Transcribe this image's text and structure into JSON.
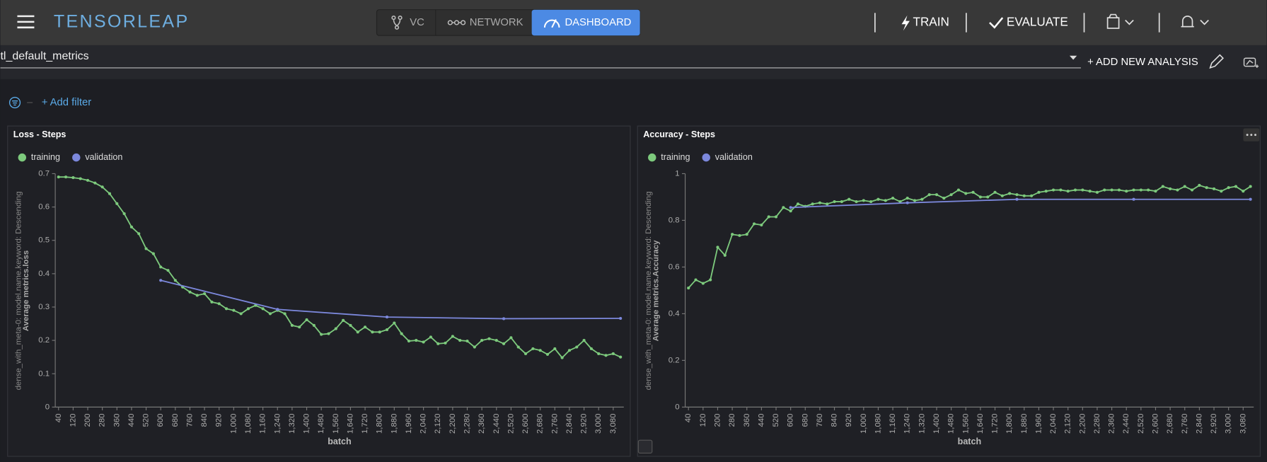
{
  "header": {
    "brand": "TENSORLEAP",
    "tabs": [
      "VC",
      "NETWORK",
      "DASHBOARD"
    ],
    "actions": [
      "TRAIN",
      "EVALUATE"
    ]
  },
  "dashboard": {
    "name": "tl_default_metrics",
    "add_analysis": "+ ADD NEW ANALYSIS",
    "add_filter": "+ Add filter"
  },
  "chart_data": [
    {
      "type": "line",
      "title": "Loss - Steps",
      "x_label": "batch",
      "y_label": "Average metrics.loss",
      "y_sublabel": "dense_with_meta-0: model.name.keyword: Descending",
      "xlim": [
        22,
        3138
      ],
      "ylim": [
        0,
        0.7
      ],
      "yticks": [
        0,
        0.1,
        0.2,
        0.3,
        0.4,
        0.5,
        0.6,
        0.7
      ],
      "xticks": [
        40,
        120,
        200,
        280,
        360,
        440,
        520,
        600,
        680,
        760,
        840,
        920,
        {
          "value": 1000,
          "label": "1,000"
        },
        {
          "value": 1080,
          "label": "1,080"
        },
        {
          "value": 1160,
          "label": "1,160"
        },
        {
          "value": 1240,
          "label": "1,240"
        },
        {
          "value": 1320,
          "label": "1,320"
        },
        {
          "value": 1400,
          "label": "1,400"
        },
        {
          "value": 1480,
          "label": "1,480"
        },
        {
          "value": 1560,
          "label": "1,560"
        },
        {
          "value": 1640,
          "label": "1,640"
        },
        {
          "value": 1720,
          "label": "1,720"
        },
        {
          "value": 1800,
          "label": "1,800"
        },
        {
          "value": 1880,
          "label": "1,880"
        },
        {
          "value": 1960,
          "label": "1,960"
        },
        {
          "value": 2040,
          "label": "2,040"
        },
        {
          "value": 2120,
          "label": "2,120"
        },
        {
          "value": 2200,
          "label": "2,200"
        },
        {
          "value": 2280,
          "label": "2,280"
        },
        {
          "value": 2360,
          "label": "2,360"
        },
        {
          "value": 2440,
          "label": "2,440"
        },
        {
          "value": 2520,
          "label": "2,520"
        },
        {
          "value": 2600,
          "label": "2,600"
        },
        {
          "value": 2680,
          "label": "2,680"
        },
        {
          "value": 2760,
          "label": "2,760"
        },
        {
          "value": 2840,
          "label": "2,840"
        },
        {
          "value": 2920,
          "label": "2,920"
        },
        {
          "value": 3000,
          "label": "3,000"
        },
        {
          "value": 3080,
          "label": "3,080"
        }
      ],
      "series": [
        {
          "name": "training",
          "color": "#7dca7d",
          "x": [
            40,
            80,
            120,
            160,
            200,
            240,
            280,
            320,
            360,
            400,
            440,
            480,
            520,
            560,
            600,
            640,
            680,
            720,
            760,
            800,
            840,
            880,
            920,
            960,
            1000,
            1040,
            1080,
            1120,
            1160,
            1200,
            1240,
            1280,
            1320,
            1360,
            1400,
            1440,
            1480,
            1520,
            1560,
            1600,
            1640,
            1680,
            1720,
            1760,
            1800,
            1840,
            1880,
            1920,
            1960,
            2000,
            2040,
            2080,
            2120,
            2160,
            2200,
            2240,
            2280,
            2320,
            2360,
            2400,
            2440,
            2480,
            2520,
            2560,
            2600,
            2640,
            2680,
            2720,
            2760,
            2800,
            2840,
            2880,
            2920,
            2960,
            3000,
            3040,
            3080,
            3120
          ],
          "values": [
            0.69,
            0.69,
            0.688,
            0.685,
            0.68,
            0.672,
            0.66,
            0.64,
            0.61,
            0.58,
            0.54,
            0.52,
            0.475,
            0.46,
            0.42,
            0.41,
            0.38,
            0.36,
            0.345,
            0.335,
            0.34,
            0.315,
            0.31,
            0.295,
            0.29,
            0.28,
            0.295,
            0.305,
            0.295,
            0.28,
            0.29,
            0.28,
            0.245,
            0.24,
            0.262,
            0.245,
            0.218,
            0.22,
            0.235,
            0.26,
            0.245,
            0.225,
            0.24,
            0.225,
            0.225,
            0.232,
            0.252,
            0.22,
            0.198,
            0.2,
            0.195,
            0.21,
            0.19,
            0.192,
            0.212,
            0.2,
            0.198,
            0.18,
            0.2,
            0.205,
            0.2,
            0.19,
            0.208,
            0.18,
            0.16,
            0.175,
            0.17,
            0.158,
            0.175,
            0.148,
            0.17,
            0.18,
            0.2,
            0.175,
            0.16,
            0.155,
            0.16,
            0.15
          ]
        },
        {
          "name": "validation",
          "color": "#7c88dc",
          "x": [
            600,
            1240,
            1840,
            2480,
            3120
          ],
          "values": [
            0.38,
            0.293,
            0.27,
            0.265,
            0.266
          ]
        }
      ]
    },
    {
      "type": "line",
      "title": "Accuracy - Steps",
      "x_label": "batch",
      "y_label": "Average metrics.Accuracy",
      "y_sublabel": "dense_with_meta-0: model.name.keyword: Descending",
      "xlim": [
        22,
        3138
      ],
      "ylim": [
        0,
        1
      ],
      "yticks": [
        0,
        0.2,
        0.4,
        0.6,
        0.8,
        1
      ],
      "xticks": [
        40,
        120,
        200,
        280,
        360,
        440,
        520,
        600,
        680,
        760,
        840,
        920,
        {
          "value": 1000,
          "label": "1,000"
        },
        {
          "value": 1080,
          "label": "1,080"
        },
        {
          "value": 1160,
          "label": "1,160"
        },
        {
          "value": 1240,
          "label": "1,240"
        },
        {
          "value": 1320,
          "label": "1,320"
        },
        {
          "value": 1400,
          "label": "1,400"
        },
        {
          "value": 1480,
          "label": "1,480"
        },
        {
          "value": 1560,
          "label": "1,560"
        },
        {
          "value": 1640,
          "label": "1,640"
        },
        {
          "value": 1720,
          "label": "1,720"
        },
        {
          "value": 1800,
          "label": "1,800"
        },
        {
          "value": 1880,
          "label": "1,880"
        },
        {
          "value": 1960,
          "label": "1,960"
        },
        {
          "value": 2040,
          "label": "2,040"
        },
        {
          "value": 2120,
          "label": "2,120"
        },
        {
          "value": 2200,
          "label": "2,200"
        },
        {
          "value": 2280,
          "label": "2,280"
        },
        {
          "value": 2360,
          "label": "2,360"
        },
        {
          "value": 2440,
          "label": "2,440"
        },
        {
          "value": 2520,
          "label": "2,520"
        },
        {
          "value": 2600,
          "label": "2,600"
        },
        {
          "value": 2680,
          "label": "2,680"
        },
        {
          "value": 2760,
          "label": "2,760"
        },
        {
          "value": 2840,
          "label": "2,840"
        },
        {
          "value": 2920,
          "label": "2,920"
        },
        {
          "value": 3000,
          "label": "3,000"
        },
        {
          "value": 3080,
          "label": "3,080"
        }
      ],
      "series": [
        {
          "name": "training",
          "color": "#7dca7d",
          "x": [
            40,
            80,
            120,
            160,
            200,
            240,
            280,
            320,
            360,
            400,
            440,
            480,
            520,
            560,
            600,
            640,
            680,
            720,
            760,
            800,
            840,
            880,
            920,
            960,
            1000,
            1040,
            1080,
            1120,
            1160,
            1200,
            1240,
            1280,
            1320,
            1360,
            1400,
            1440,
            1480,
            1520,
            1560,
            1600,
            1640,
            1680,
            1720,
            1760,
            1800,
            1840,
            1880,
            1920,
            1960,
            2000,
            2040,
            2080,
            2120,
            2160,
            2200,
            2240,
            2280,
            2320,
            2360,
            2400,
            2440,
            2480,
            2520,
            2560,
            2600,
            2640,
            2680,
            2720,
            2760,
            2800,
            2840,
            2880,
            2920,
            2960,
            3000,
            3040,
            3080,
            3120
          ],
          "values": [
            0.51,
            0.545,
            0.53,
            0.545,
            0.685,
            0.65,
            0.74,
            0.735,
            0.74,
            0.785,
            0.78,
            0.815,
            0.815,
            0.855,
            0.84,
            0.87,
            0.86,
            0.87,
            0.875,
            0.87,
            0.88,
            0.88,
            0.89,
            0.88,
            0.885,
            0.88,
            0.89,
            0.885,
            0.895,
            0.88,
            0.895,
            0.885,
            0.89,
            0.91,
            0.91,
            0.895,
            0.91,
            0.93,
            0.915,
            0.92,
            0.9,
            0.9,
            0.92,
            0.905,
            0.915,
            0.91,
            0.905,
            0.905,
            0.92,
            0.925,
            0.93,
            0.93,
            0.925,
            0.93,
            0.93,
            0.925,
            0.92,
            0.93,
            0.93,
            0.93,
            0.925,
            0.93,
            0.93,
            0.93,
            0.925,
            0.945,
            0.935,
            0.93,
            0.945,
            0.93,
            0.95,
            0.94,
            0.935,
            0.925,
            0.94,
            0.945,
            0.925,
            0.945
          ]
        },
        {
          "name": "validation",
          "color": "#7c88dc",
          "x": [
            600,
            1240,
            1840,
            2480,
            3120
          ],
          "values": [
            0.855,
            0.875,
            0.89,
            0.89,
            0.89
          ]
        }
      ]
    }
  ]
}
